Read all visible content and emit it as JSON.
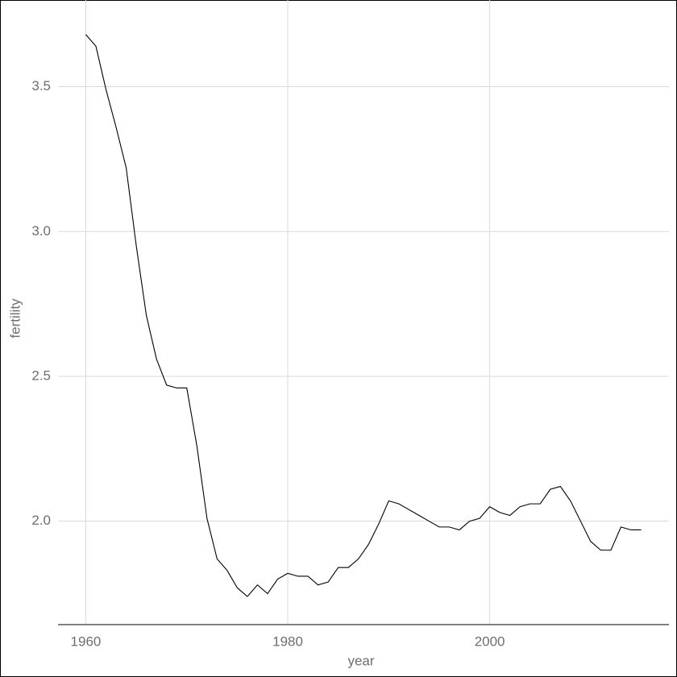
{
  "chart_data": {
    "type": "line",
    "x_label": "year",
    "y_label": "fertility",
    "x": [
      1960,
      1961,
      1962,
      1963,
      1964,
      1965,
      1966,
      1967,
      1968,
      1969,
      1970,
      1971,
      1972,
      1973,
      1974,
      1975,
      1976,
      1977,
      1978,
      1979,
      1980,
      1981,
      1982,
      1983,
      1984,
      1985,
      1986,
      1987,
      1988,
      1989,
      1990,
      1991,
      1992,
      1993,
      1994,
      1995,
      1996,
      1997,
      1998,
      1999,
      2000,
      2001,
      2002,
      2003,
      2004,
      2005,
      2006,
      2007,
      2008,
      2009,
      2010,
      2011,
      2012,
      2013,
      2014,
      2015
    ],
    "values": [
      3.68,
      3.64,
      3.49,
      3.36,
      3.22,
      2.95,
      2.71,
      2.56,
      2.47,
      2.46,
      2.46,
      2.26,
      2.01,
      1.87,
      1.83,
      1.77,
      1.74,
      1.78,
      1.75,
      1.8,
      1.82,
      1.81,
      1.81,
      1.78,
      1.79,
      1.84,
      1.84,
      1.87,
      1.92,
      1.99,
      2.07,
      2.06,
      2.04,
      2.02,
      2.0,
      1.98,
      1.98,
      1.97,
      2.0,
      2.01,
      2.05,
      2.03,
      2.02,
      2.05,
      2.06,
      2.06,
      2.11,
      2.12,
      2.07,
      2.0,
      1.93,
      1.9,
      1.9,
      1.98,
      1.97,
      1.97
    ],
    "color": "#000000",
    "xlim": [
      1957.25,
      2017.75
    ],
    "xticks": [
      1960,
      1980,
      2000
    ],
    "ylim": [
      1.643,
      3.777
    ],
    "yticks": [
      {
        "value": 2,
        "label": "2.0"
      },
      2.5,
      {
        "value": 3,
        "label": "3.0"
      },
      3.5
    ],
    "grid": true
  }
}
